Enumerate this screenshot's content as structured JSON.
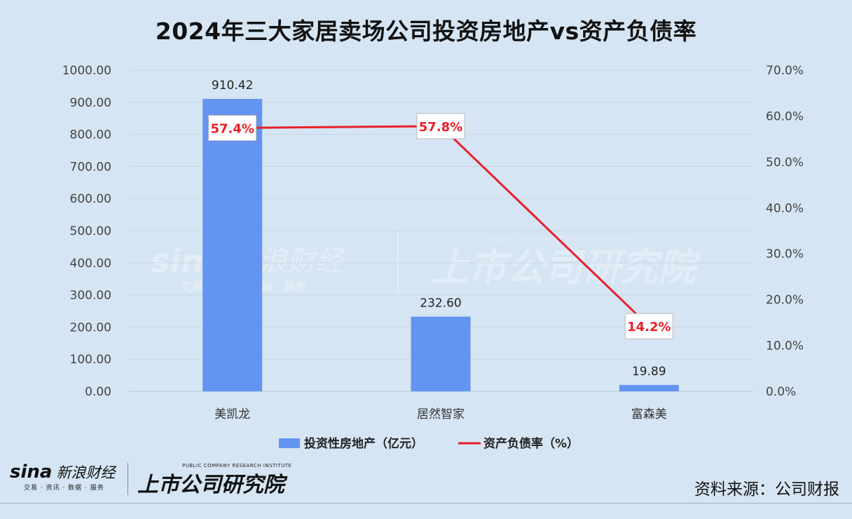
{
  "title": "2024年三大家居卖场公司投资房地产vs资产负债率",
  "source": "资料来源：公司财报",
  "logos": {
    "sina_text": "sina",
    "sina_cn": "新浪财经",
    "sina_sub": "交易 · 资讯 · 数据 · 服务",
    "research_en": "PUBLIC COMPANY RESEARCH INSTITUTE",
    "research_cn": "上市公司研究院"
  },
  "colors": {
    "bar": "#6394f2",
    "line": "#e8202a",
    "background": "#d6e5f3",
    "grid": "#c9d6e3"
  },
  "chart_data": {
    "type": "bar",
    "categories": [
      "美凯龙",
      "居然智家",
      "富森美"
    ],
    "series": [
      {
        "name": "投资性房地产（亿元）",
        "type": "bar",
        "axis": "left",
        "values": [
          910.42,
          232.6,
          19.89
        ],
        "labels": [
          "910.42",
          "232.60",
          "19.89"
        ]
      },
      {
        "name": "资产负债率（%）",
        "type": "line",
        "axis": "right",
        "values": [
          57.4,
          57.8,
          14.2
        ],
        "labels": [
          "57.4%",
          "57.8%",
          "14.2%"
        ]
      }
    ],
    "y_left": {
      "ylim": [
        0,
        1000
      ],
      "ticks": [
        "0.00",
        "100.00",
        "200.00",
        "300.00",
        "400.00",
        "500.00",
        "600.00",
        "700.00",
        "800.00",
        "900.00",
        "1000.00"
      ]
    },
    "y_right": {
      "ylim": [
        0,
        70
      ],
      "ticks": [
        "0.0%",
        "10.0%",
        "20.0%",
        "30.0%",
        "40.0%",
        "50.0%",
        "60.0%",
        "70.0%"
      ]
    },
    "grid": true,
    "legend_position": "bottom"
  }
}
